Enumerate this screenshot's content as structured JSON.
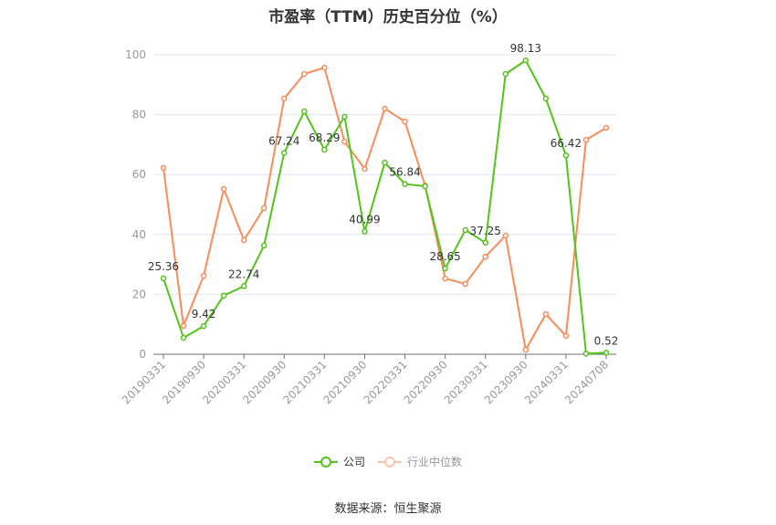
{
  "title": "市盈率（TTM）历史百分位（%）",
  "source": "数据来源：恒生聚源",
  "legend": [
    {
      "label": "公司",
      "color": "#52c41a"
    },
    {
      "label": "行业中位数",
      "color": "#fa8c5a"
    }
  ],
  "chart_data": {
    "type": "line",
    "title": "市盈率（TTM）历史百分位（%）",
    "xlabel": "",
    "ylabel": "",
    "ylim": [
      0,
      100
    ],
    "yticks": [
      0,
      20,
      40,
      60,
      80,
      100
    ],
    "grid": true,
    "legend_position": "bottom",
    "x": [
      "20190331",
      "20190630",
      "20190930",
      "20191231",
      "20200331",
      "20200630",
      "20200930",
      "20201231",
      "20210331",
      "20210630",
      "20210930",
      "20211231",
      "20220331",
      "20220630",
      "20220930",
      "20221231",
      "20230331",
      "20230630",
      "20230930",
      "20231231",
      "20240331",
      "20240630",
      "20240708"
    ],
    "xtick_labels": [
      "20190331",
      "20190930",
      "20200331",
      "20200930",
      "20210331",
      "20210930",
      "20220331",
      "20220930",
      "20230331",
      "20230930",
      "20240331",
      "20240708"
    ],
    "series": [
      {
        "name": "公司",
        "color": "#52c41a",
        "values": [
          25.36,
          5.5,
          9.42,
          19.6,
          22.74,
          36.3,
          67.24,
          81.1,
          68.29,
          79.3,
          40.99,
          64.0,
          56.84,
          56.1,
          28.65,
          41.5,
          37.25,
          93.6,
          98.13,
          85.4,
          66.42,
          0.2,
          0.52
        ],
        "labels": {
          "0": "25.36",
          "2": "9.42",
          "4": "22.74",
          "6": "67.24",
          "8": "68.29",
          "10": "40.99",
          "12": "56.84",
          "14": "28.65",
          "16": "37.25",
          "18": "98.13",
          "20": "66.42",
          "22": "0.52"
        }
      },
      {
        "name": "行业中位数",
        "color": "#fa8c5a",
        "values": [
          62.2,
          9.5,
          26.2,
          55.2,
          38.1,
          48.8,
          85.4,
          93.6,
          95.7,
          71.0,
          61.9,
          82.0,
          77.7,
          56.4,
          25.3,
          23.5,
          32.6,
          39.6,
          1.5,
          13.4,
          6.1,
          71.6,
          75.6
        ]
      }
    ]
  }
}
